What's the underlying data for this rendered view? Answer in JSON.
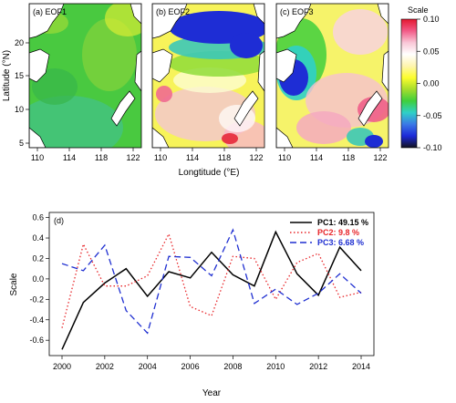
{
  "colors": {
    "pc1": "#000000",
    "pc2": "#e8262a",
    "pc3": "#1f2fd1",
    "land": "#ffffff",
    "coast": "#000000"
  },
  "maps": {
    "ylabel": "Latitude (°N)",
    "xlabel": "Longtitude (°E)",
    "x_ticks": [
      "110",
      "114",
      "118",
      "122"
    ],
    "y_ticks": [
      "20",
      "15",
      "10",
      "5"
    ],
    "panels": [
      {
        "label": "(a) EOF1",
        "pattern": "green-uniform"
      },
      {
        "label": "(b) EOF2",
        "pattern": "blue-north-pink-south"
      },
      {
        "label": "(c) EOF3",
        "pattern": "blue-northwest-red-east"
      }
    ],
    "colorbar": {
      "title": "Scale",
      "ticks": [
        "0.10",
        "0.05",
        "0.00",
        "-0.05",
        "-0.10"
      ],
      "stops": [
        "#13131f",
        "#1d2ad8",
        "#3b78e6",
        "#2fd0c8",
        "#3fcf3c",
        "#a6dd2c",
        "#fdfd2e",
        "#fff5b0",
        "#ffffff",
        "#f9c6d6",
        "#f25a87",
        "#e3172f"
      ]
    }
  },
  "chart_data": {
    "type": "line",
    "title": "(d)",
    "xlabel": "Year",
    "ylabel": "Scale",
    "xlim": [
      2000,
      2014
    ],
    "ylim": [
      -0.75,
      0.65
    ],
    "x_ticks": [
      "2000",
      "2002",
      "2004",
      "2006",
      "2008",
      "2010",
      "2012",
      "2014"
    ],
    "y_ticks": [
      "0.6",
      "0.4",
      "0.2",
      "0.0",
      "-0.2",
      "-0.4",
      "-0.6"
    ],
    "grid": false,
    "legend_position": "top-right",
    "x": [
      2000,
      2001,
      2002,
      2003,
      2004,
      2005,
      2006,
      2007,
      2008,
      2009,
      2010,
      2011,
      2012,
      2013,
      2014
    ],
    "series": [
      {
        "name": "PC1: 49.15 %",
        "style": "solid",
        "values": [
          -0.69,
          -0.23,
          -0.04,
          0.1,
          -0.17,
          0.07,
          0.01,
          0.26,
          0.04,
          -0.07,
          0.46,
          0.05,
          -0.16,
          0.31,
          0.08
        ]
      },
      {
        "name": "PC2: 9.8 %",
        "style": "dotted",
        "values": [
          -0.48,
          0.34,
          -0.07,
          -0.07,
          0.03,
          0.44,
          -0.27,
          -0.36,
          0.22,
          0.2,
          -0.2,
          0.16,
          0.25,
          -0.18,
          -0.13
        ]
      },
      {
        "name": "PC3: 6.68 %",
        "style": "dashed",
        "values": [
          0.15,
          0.08,
          0.33,
          -0.31,
          -0.53,
          0.22,
          0.21,
          0.03,
          0.48,
          -0.24,
          -0.1,
          -0.25,
          -0.14,
          0.05,
          -0.14
        ]
      }
    ]
  }
}
